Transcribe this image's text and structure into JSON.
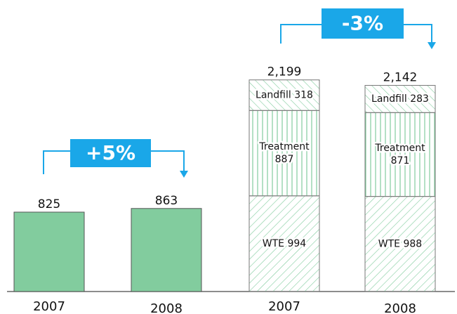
{
  "chart_data": [
    {
      "type": "bar",
      "categories": [
        "2007",
        "2008"
      ],
      "values": [
        825,
        863
      ],
      "color": "#82cc9e",
      "annotation": "+5%",
      "annotation_color": "#1aa7e8"
    },
    {
      "type": "stacked_bar",
      "categories": [
        "2007",
        "2008"
      ],
      "series": [
        {
          "name": "WTE",
          "color": "#82cc9e",
          "values": [
            994,
            988
          ]
        },
        {
          "name": "Treatment",
          "color": "#82cc9e",
          "values": [
            887,
            871
          ]
        },
        {
          "name": "Landfill",
          "color": "#82cc9e",
          "values": [
            318,
            283
          ]
        }
      ],
      "totals": [
        2199,
        2142
      ],
      "total_labels": [
        "2,199",
        "2,142"
      ],
      "annotation": "-3%",
      "annotation_color": "#1aa7e8"
    }
  ]
}
